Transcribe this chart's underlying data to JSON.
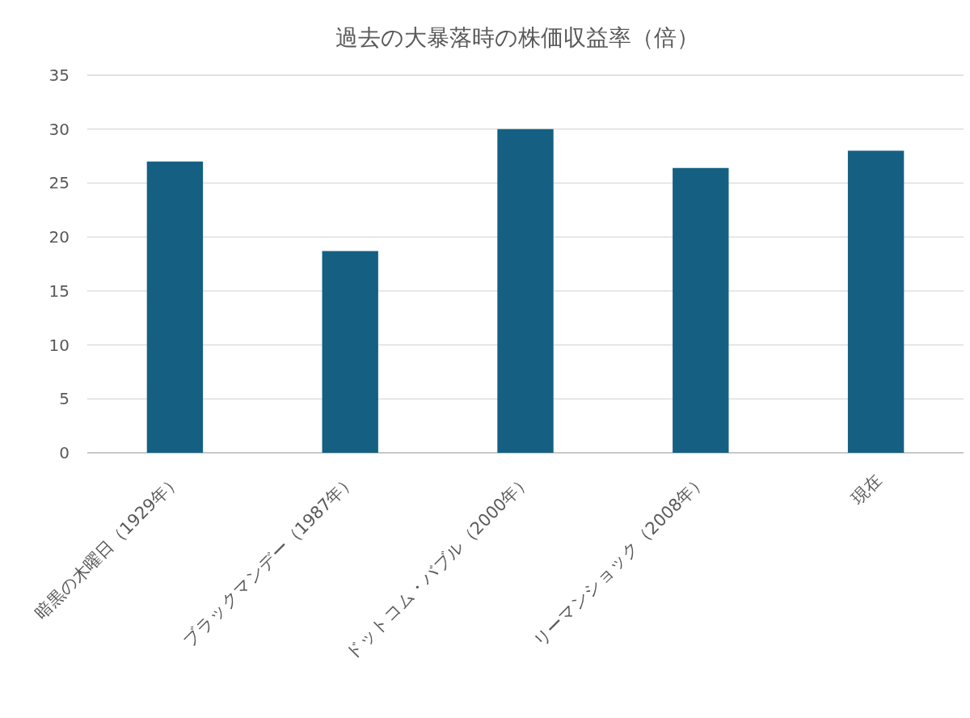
{
  "chart_data": {
    "type": "bar",
    "title": "過去の大暴落時の株価収益率（倍）",
    "categories": [
      "暗黒の木曜日（1929年）",
      "ブラックマンデー（1987年）",
      "ドットコム・バブル（2000年）",
      "リーマンショック（2008年）",
      "現在"
    ],
    "values": [
      27,
      18.7,
      30,
      26.4,
      28
    ],
    "color": "#156082",
    "ylim": [
      0,
      35
    ],
    "yticks": [
      0,
      5,
      10,
      15,
      20,
      25,
      30,
      35
    ],
    "grid": "y"
  }
}
